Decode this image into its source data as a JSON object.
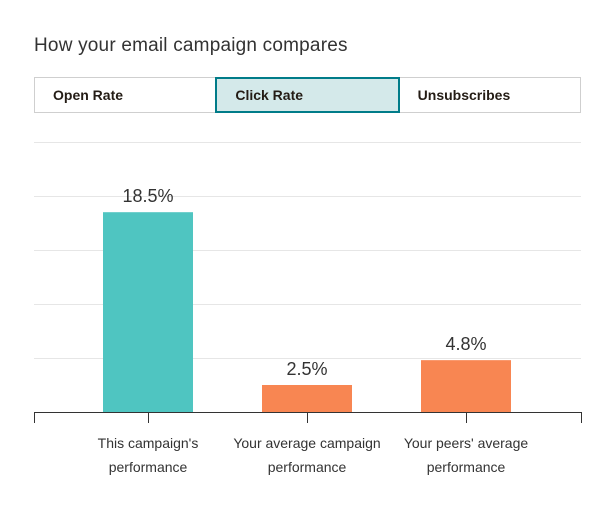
{
  "header": {
    "title": "How your email campaign compares"
  },
  "tabs": [
    {
      "label": "Open Rate",
      "active": false
    },
    {
      "label": "Click Rate",
      "active": true
    },
    {
      "label": "Unsubscribes",
      "active": false
    }
  ],
  "colors": {
    "campaign_bar": "#4fc5c1",
    "comparison_bar": "#f88652",
    "active_tab_bg": "#d4e9ea",
    "active_tab_border": "#007c89"
  },
  "chart_data": {
    "type": "bar",
    "title": "How your email campaign compares",
    "categories": [
      [
        "This campaign's",
        "performance"
      ],
      [
        "Your average campaign",
        "performance"
      ],
      [
        "Your peers' average",
        "performance"
      ]
    ],
    "values": [
      18.5,
      2.5,
      4.8
    ],
    "value_labels": [
      "18.5%",
      "2.5%",
      "4.8%"
    ],
    "ylim": [
      0,
      25
    ],
    "grid": true,
    "xlabel": "",
    "ylabel": ""
  }
}
